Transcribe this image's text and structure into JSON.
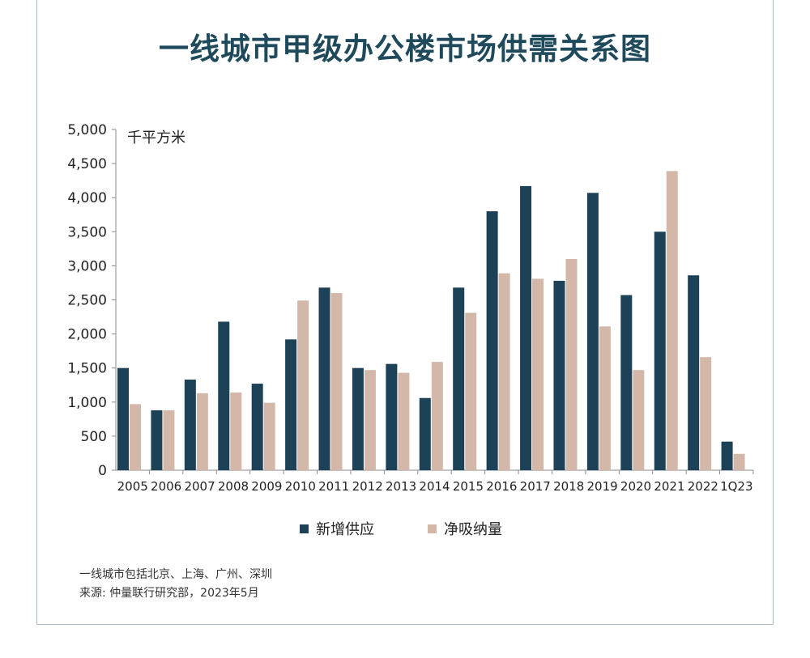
{
  "title": "一线城市甲级办公楼市场供需关系图",
  "footnote": "一线城市包括北京、上海、广州、深圳",
  "source": "来源: 仲量联行研究部，2023年5月",
  "colors": {
    "supply": "#1d4257",
    "absorption": "#d3b8aa",
    "axis": "#8a8a8a",
    "text": "#222222"
  },
  "chart_data": {
    "type": "bar",
    "unit_label": "千平方米",
    "categories": [
      "2005",
      "2006",
      "2007",
      "2008",
      "2009",
      "2010",
      "2011",
      "2012",
      "2013",
      "2014",
      "2015",
      "2016",
      "2017",
      "2018",
      "2019",
      "2020",
      "2021",
      "2022",
      "1Q23"
    ],
    "series": [
      {
        "name": "新增供应",
        "values": [
          1500,
          880,
          1330,
          2180,
          1270,
          1920,
          2680,
          1500,
          1560,
          1060,
          2680,
          3800,
          4170,
          2780,
          4070,
          2570,
          3500,
          2860,
          420
        ]
      },
      {
        "name": "净吸纳量",
        "values": [
          970,
          880,
          1130,
          1140,
          990,
          2490,
          2600,
          1470,
          1430,
          1590,
          2310,
          2890,
          2810,
          3100,
          2110,
          1470,
          4390,
          1660,
          240
        ]
      }
    ],
    "ylim": [
      0,
      5000
    ],
    "yticks": [
      0,
      500,
      1000,
      1500,
      2000,
      2500,
      3000,
      3500,
      4000,
      4500,
      5000
    ],
    "ytick_labels": [
      "0",
      "500",
      "1,000",
      "1,500",
      "2,000",
      "2,500",
      "3,000",
      "3,500",
      "4,000",
      "4,500",
      "5,000"
    ],
    "legend_position": "bottom-center",
    "grid": false
  }
}
